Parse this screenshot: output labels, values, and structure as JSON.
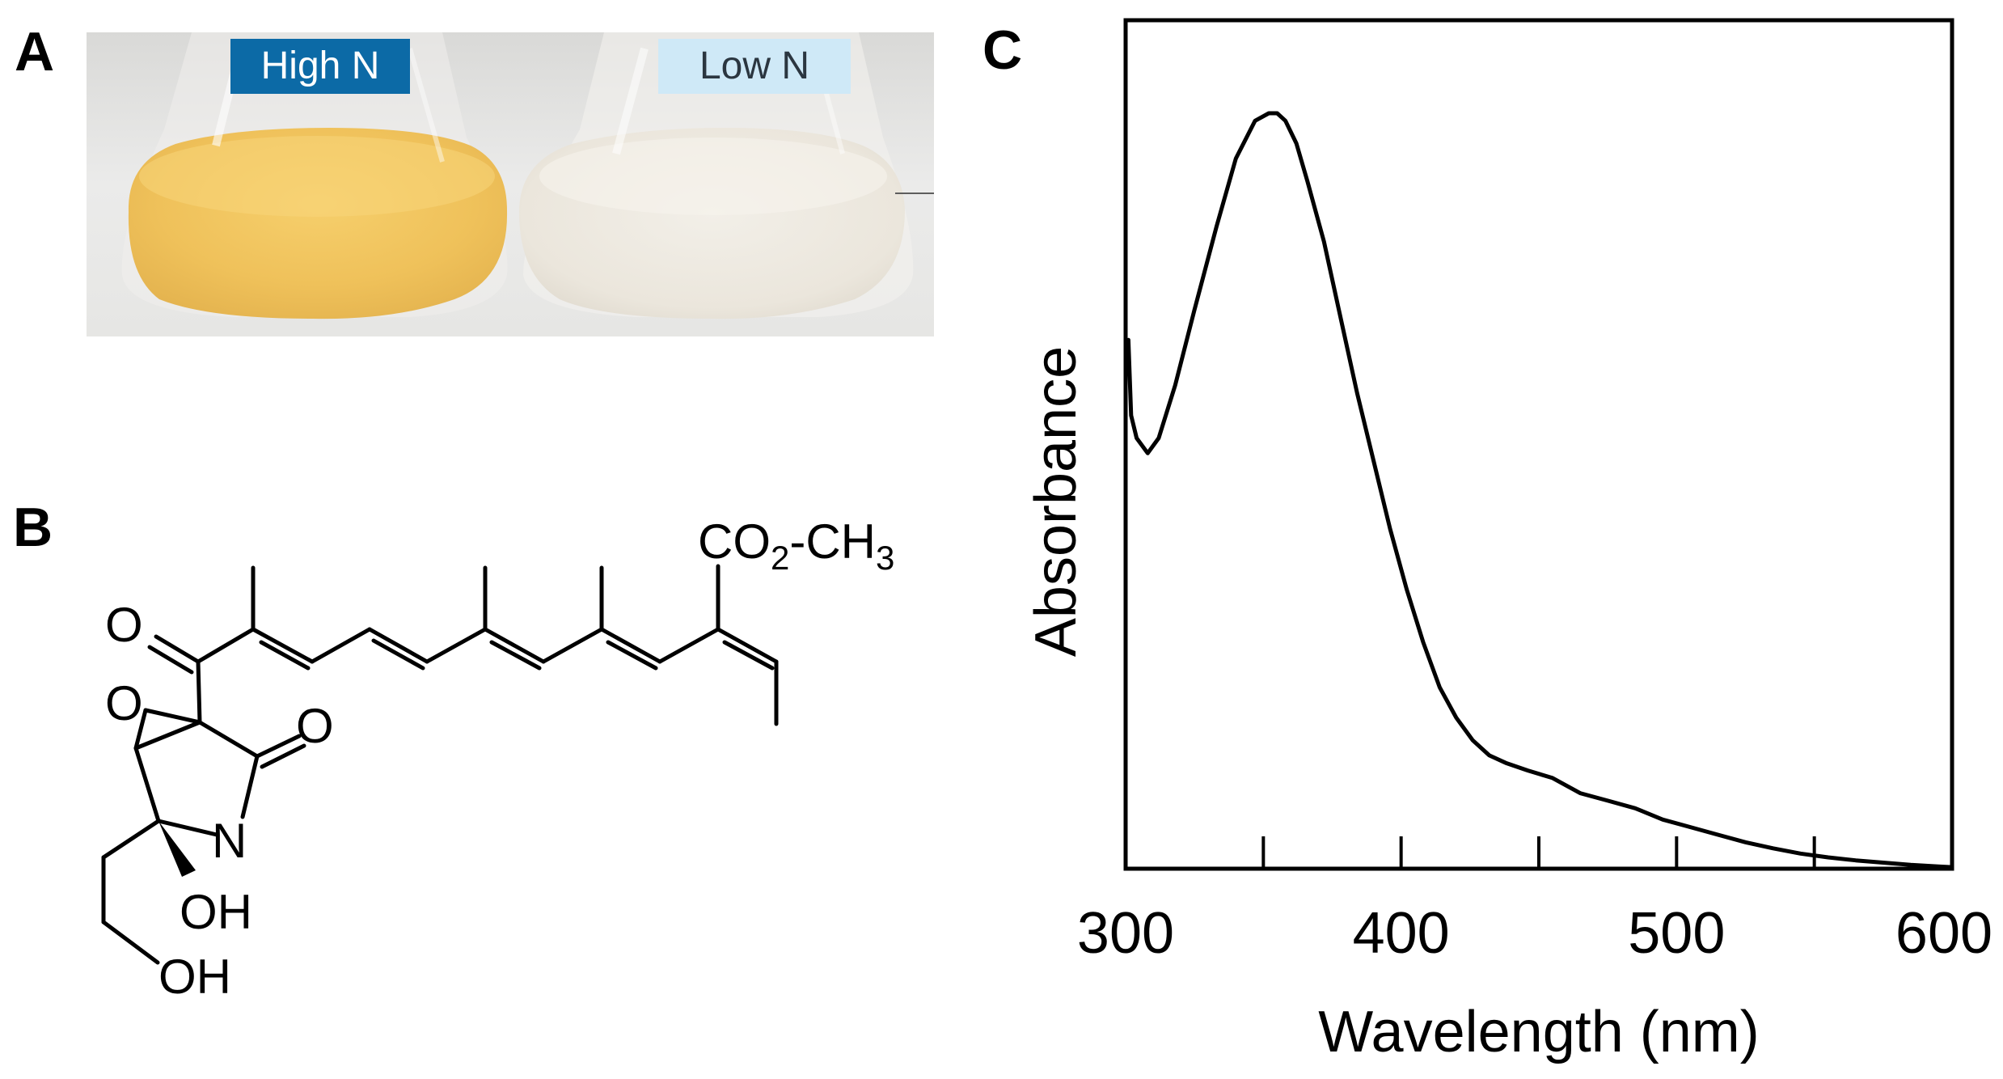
{
  "panels": {
    "a": "A",
    "b": "B",
    "c": "C"
  },
  "photo": {
    "label_high": "High N",
    "label_low": "Low N",
    "colors": {
      "high_label_bg": "#0c6aa6",
      "low_label_bg": "#cfe9f7",
      "high_culture": "#f1c45a",
      "low_culture": "#ece8de"
    }
  },
  "structure": {
    "ester_co": "CO",
    "ester_sub": "2",
    "ester_ch": "-CH",
    "ester_sub3": "3",
    "ketone_o": "O",
    "epoxide_o": "O",
    "lactam_o": "O",
    "nitrogen": "N",
    "hydroxyl_1": "OH",
    "hydroxyl_2": "OH"
  },
  "chart_data": {
    "type": "line",
    "title": "",
    "xlabel": "Wavelength (nm)",
    "ylabel": "Absorbance",
    "xlim": [
      300,
      600
    ],
    "ylim": [
      0,
      1
    ],
    "xticks": [
      300,
      400,
      500,
      600
    ],
    "minor_ticks": [
      350,
      450,
      550
    ],
    "grid": false,
    "legend": "none",
    "series": [
      {
        "x": [
          301,
          302,
          304,
          308,
          312,
          318,
          325,
          333,
          340,
          347,
          352,
          355,
          358,
          362,
          366,
          372,
          378,
          384,
          390,
          396,
          402,
          408,
          414,
          420,
          426,
          432,
          438,
          446,
          455,
          465,
          475,
          485,
          495,
          505,
          515,
          525,
          535,
          545,
          555,
          565,
          575,
          585,
          595,
          600
        ],
        "y": [
          0.7,
          0.6,
          0.57,
          0.55,
          0.57,
          0.64,
          0.74,
          0.85,
          0.94,
          0.99,
          1.0,
          1.0,
          0.99,
          0.96,
          0.91,
          0.83,
          0.73,
          0.63,
          0.54,
          0.45,
          0.37,
          0.3,
          0.24,
          0.2,
          0.17,
          0.15,
          0.14,
          0.13,
          0.12,
          0.1,
          0.09,
          0.08,
          0.065,
          0.055,
          0.045,
          0.035,
          0.027,
          0.02,
          0.015,
          0.011,
          0.008,
          0.005,
          0.003,
          0.002
        ]
      }
    ]
  }
}
